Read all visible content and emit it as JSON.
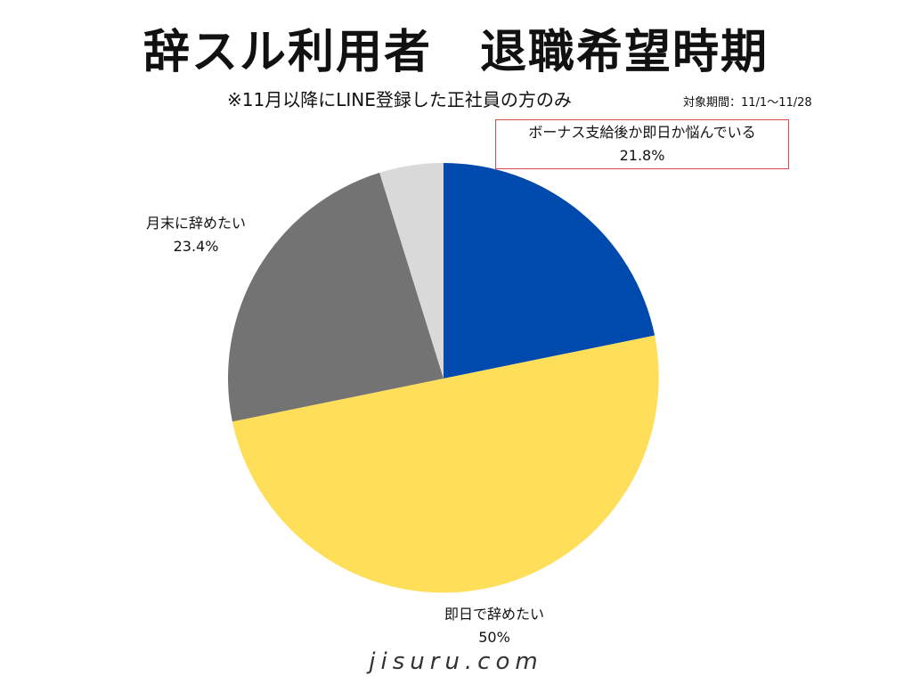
{
  "header": {
    "title": "辞スル利用者　退職希望時期",
    "subtitle": "※11月以降にLINE登録した正社員の方のみ",
    "period": "対象期間：11/1〜11/28"
  },
  "chart_data": {
    "type": "pie",
    "start_angle_deg": 0,
    "direction": "clockwise",
    "slices": [
      {
        "label": "ボーナス支給後か即日か悩んでいる",
        "value": 21.8,
        "value_label": "21.8%",
        "color": "#004AAD"
      },
      {
        "label": "即日で辞めたい",
        "value": 50,
        "value_label": "50%",
        "color": "#FFDE59"
      },
      {
        "label": "月末に辞めたい",
        "value": 23.4,
        "value_label": "23.4%",
        "color": "#737373"
      },
      {
        "label": "",
        "value": 4.8,
        "value_label": "",
        "color": "#D9D9D9"
      }
    ],
    "highlighted_label": "ボーナス支給後か即日か悩んでいる",
    "highlight_color": "#E04848"
  },
  "footer": {
    "site": "jisuru.com"
  }
}
